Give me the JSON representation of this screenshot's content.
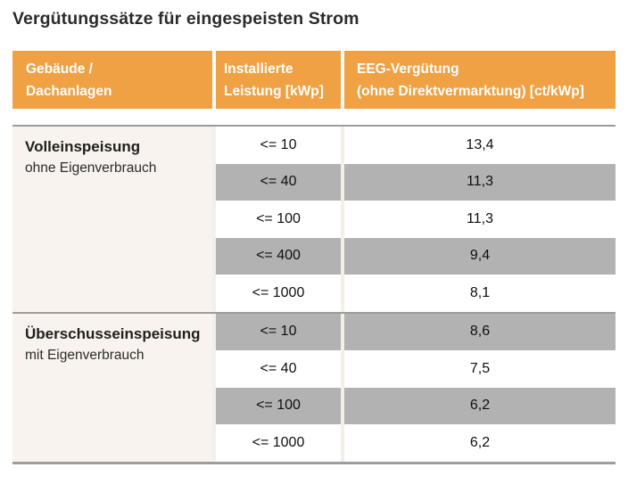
{
  "page": {
    "title": "Vergütungssätze für eingespeisten Strom"
  },
  "chart_data": {
    "type": "table",
    "title": "Vergütungssätze für eingespeisten Strom",
    "columns": [
      {
        "line1": "Gebäude /",
        "line2": "Dachanlagen"
      },
      {
        "line1": "Installierte",
        "line2": "Leistung [kWp]"
      },
      {
        "line1": "EEG-Vergütung",
        "line2": "(ohne Direktvermarktung) [ct/kWp]"
      }
    ],
    "sections": [
      {
        "name": "Volleinspeisung",
        "subtitle": "ohne Eigenverbrauch",
        "rows": [
          {
            "power": "<= 10",
            "rate": "13,4",
            "shaded": false
          },
          {
            "power": "<= 40",
            "rate": "11,3",
            "shaded": true
          },
          {
            "power": "<= 100",
            "rate": "11,3",
            "shaded": false
          },
          {
            "power": "<= 400",
            "rate": "9,4",
            "shaded": true
          },
          {
            "power": "<= 1000",
            "rate": "8,1",
            "shaded": false
          }
        ]
      },
      {
        "name": "Überschusseinspeisung",
        "subtitle": "mit Eigenverbrauch",
        "rows": [
          {
            "power": "<= 10",
            "rate": "8,6",
            "shaded": true
          },
          {
            "power": "<= 40",
            "rate": "7,5",
            "shaded": false
          },
          {
            "power": "<= 100",
            "rate": "6,2",
            "shaded": true
          },
          {
            "power": "<= 1000",
            "rate": "6,2",
            "shaded": false
          }
        ]
      }
    ]
  },
  "colors": {
    "header_bg": "#F0A143",
    "header_text": "#FFFFFF",
    "shaded_row_bg": "#B2B2B2",
    "section_column_bg": "#F8F3EE",
    "divider": "#9C9C9C",
    "title_text": "#2B2B2B",
    "body_text": "#0F0F0F"
  }
}
